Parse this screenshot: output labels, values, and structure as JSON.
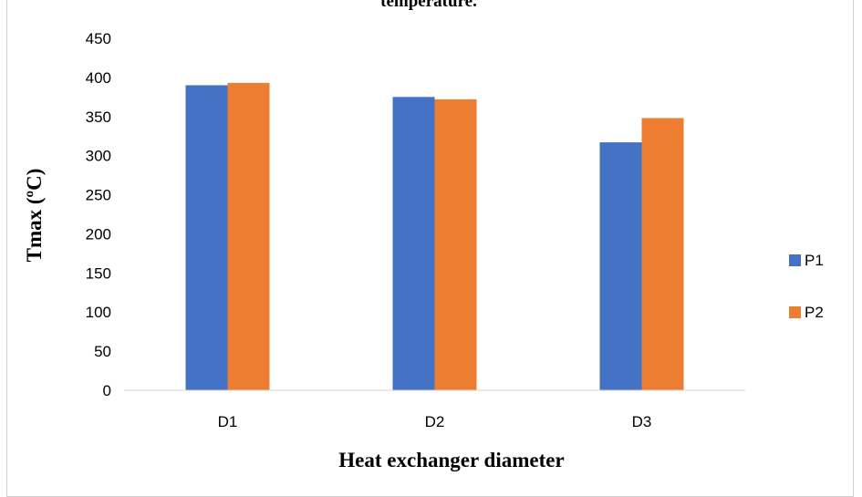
{
  "chart_data": {
    "type": "bar",
    "title": "temperature.",
    "xlabel": "Heat exchanger diameter",
    "ylabel": "Tmax  (ºC)",
    "categories": [
      "D1",
      "D2",
      "D3"
    ],
    "series": [
      {
        "name": "P1",
        "values": [
          390,
          375,
          317
        ],
        "color": "#4472C4"
      },
      {
        "name": "P2",
        "values": [
          393,
          372,
          348
        ],
        "color": "#ED7D31"
      }
    ],
    "ylim": [
      0,
      450
    ],
    "yticks": [
      0,
      50,
      100,
      150,
      200,
      250,
      300,
      350,
      400,
      450
    ],
    "grid": false,
    "legend_position": "right"
  }
}
